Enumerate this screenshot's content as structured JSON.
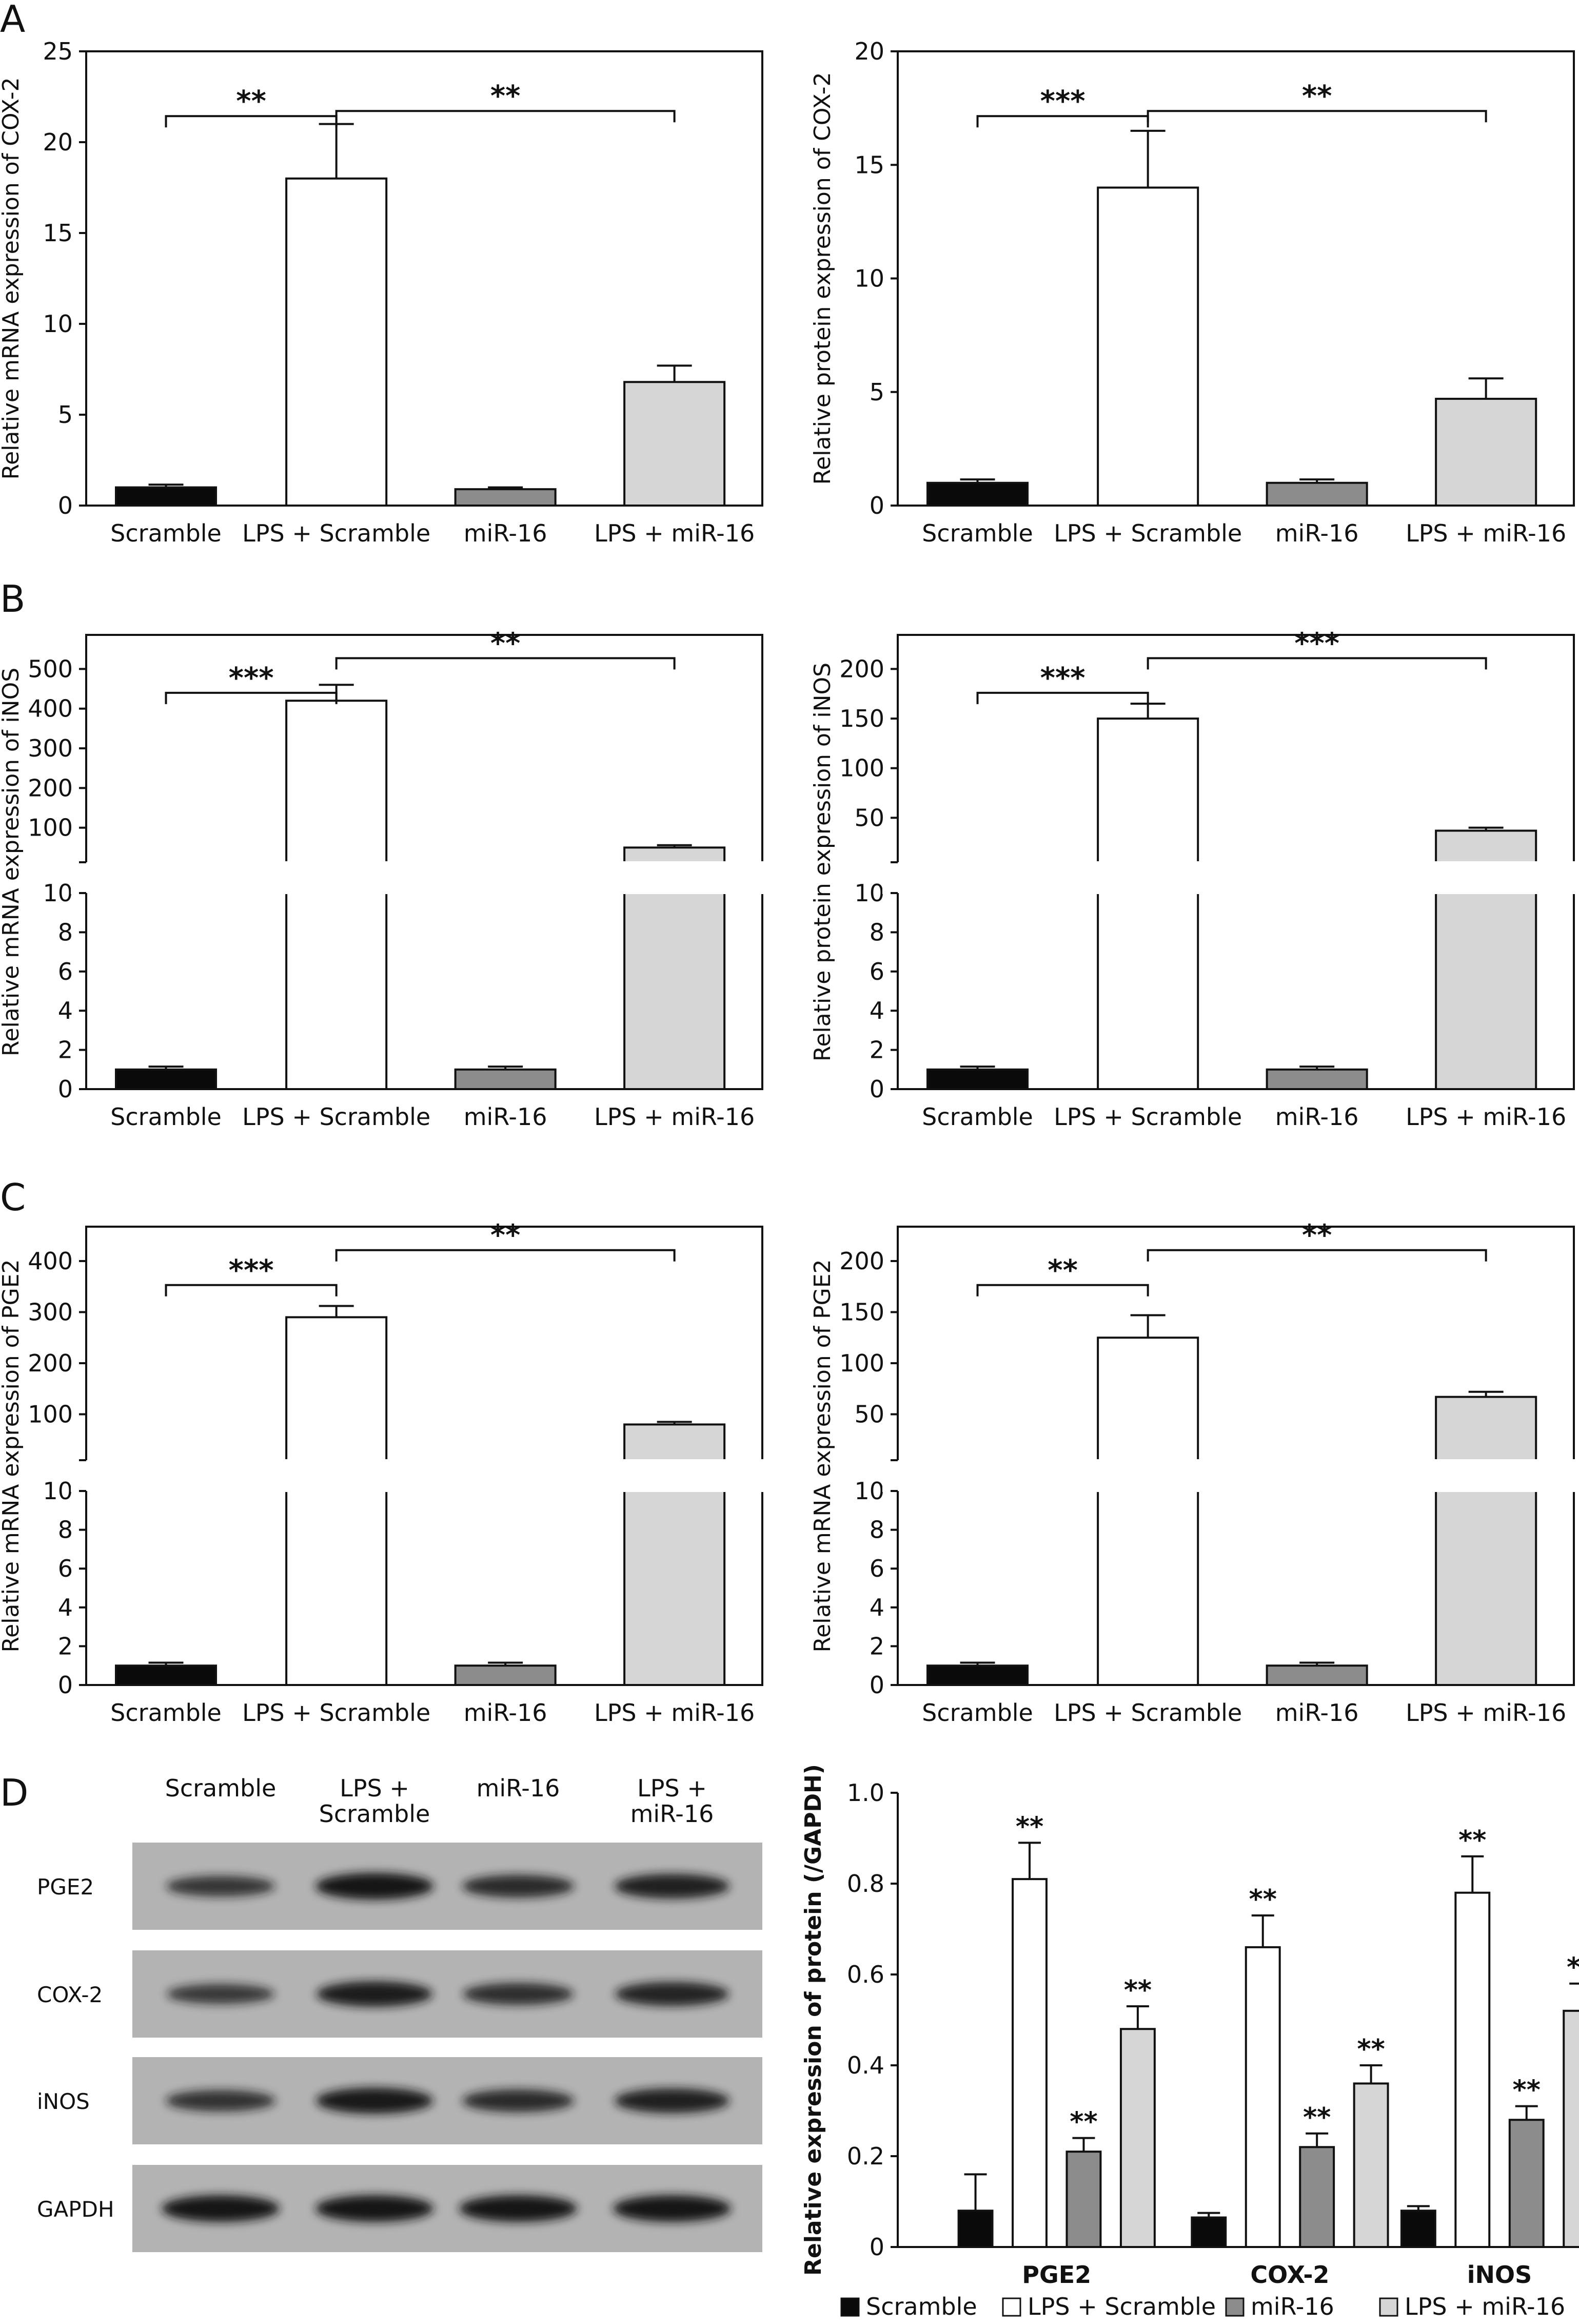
{
  "panel_labels": [
    "A",
    "B",
    "C",
    "D"
  ],
  "colors": {
    "Scramble": "#0a0a0a",
    "LPS + Scramble": "#ffffff",
    "miR-16": "#8c8c8c",
    "LPS + miR-16": "#d6d6d6",
    "axis": "#111111",
    "blot_bg": "#b3b3b3",
    "band": "#141414"
  },
  "chart_data": [
    {
      "id": "A-left",
      "panel": "A",
      "type": "bar",
      "ylabel": "Relative mRNA expression of COX-2",
      "categories": [
        "Scramble",
        "LPS + Scramble",
        "miR-16",
        "LPS + miR-16"
      ],
      "values": [
        1.0,
        18.0,
        0.9,
        6.8
      ],
      "errors": [
        0.15,
        3.0,
        0.1,
        0.9
      ],
      "ylim": [
        0,
        25
      ],
      "yticks": [
        "0",
        "5",
        "10",
        "15",
        "20",
        "25"
      ],
      "annotations": [
        {
          "from": "Scramble",
          "to": "LPS + Scramble",
          "text": "**"
        },
        {
          "from": "LPS + Scramble",
          "to": "LPS + miR-16",
          "text": "**"
        }
      ]
    },
    {
      "id": "A-right",
      "panel": "A",
      "type": "bar",
      "ylabel": "Relative protein expression of COX-2",
      "categories": [
        "Scramble",
        "LPS + Scramble",
        "miR-16",
        "LPS + miR-16"
      ],
      "values": [
        1.0,
        14.0,
        1.0,
        4.7
      ],
      "errors": [
        0.15,
        2.5,
        0.15,
        0.9
      ],
      "ylim": [
        0,
        20
      ],
      "yticks": [
        "0",
        "5",
        "10",
        "15",
        "20"
      ],
      "annotations": [
        {
          "from": "Scramble",
          "to": "LPS + Scramble",
          "text": "***"
        },
        {
          "from": "LPS + Scramble",
          "to": "LPS + miR-16",
          "text": "**"
        }
      ]
    },
    {
      "id": "B-left",
      "panel": "B",
      "type": "bar",
      "broken_axis": true,
      "ylabel": "Relative mRNA expression of iNOS",
      "categories": [
        "Scramble",
        "LPS + Scramble",
        "miR-16",
        "LPS + miR-16"
      ],
      "values": [
        1.0,
        420,
        1.0,
        50
      ],
      "errors": [
        0.15,
        40,
        0.15,
        6
      ],
      "ylim": [
        0,
        500
      ],
      "yticks_lower": [
        "0",
        "2",
        "4",
        "6",
        "8",
        "10"
      ],
      "yticks_upper": [
        "100",
        "200",
        "300",
        "400",
        "500"
      ],
      "annotations": [
        {
          "from": "Scramble",
          "to": "LPS + Scramble",
          "text": "***"
        },
        {
          "from": "LPS + Scramble",
          "to": "LPS + miR-16",
          "text": "**"
        }
      ]
    },
    {
      "id": "B-right",
      "panel": "B",
      "type": "bar",
      "broken_axis": true,
      "ylabel": "Relative protein expression of iNOS",
      "categories": [
        "Scramble",
        "LPS + Scramble",
        "miR-16",
        "LPS + miR-16"
      ],
      "values": [
        1.0,
        150,
        1.0,
        37
      ],
      "errors": [
        0.15,
        15,
        0.15,
        3
      ],
      "ylim": [
        0,
        200
      ],
      "yticks_lower": [
        "0",
        "2",
        "4",
        "6",
        "8",
        "10"
      ],
      "yticks_upper": [
        "50",
        "100",
        "150",
        "200"
      ],
      "annotations": [
        {
          "from": "Scramble",
          "to": "LPS + Scramble",
          "text": "***"
        },
        {
          "from": "LPS + Scramble",
          "to": "LPS + miR-16",
          "text": "***"
        }
      ]
    },
    {
      "id": "C-left",
      "panel": "C",
      "type": "bar",
      "broken_axis": true,
      "ylabel": "Relative mRNA expression of PGE2",
      "categories": [
        "Scramble",
        "LPS + Scramble",
        "miR-16",
        "LPS + miR-16"
      ],
      "values": [
        1.0,
        290,
        1.0,
        80
      ],
      "errors": [
        0.15,
        22,
        0.15,
        5
      ],
      "ylim": [
        0,
        400
      ],
      "yticks_lower": [
        "0",
        "2",
        "4",
        "6",
        "8",
        "10"
      ],
      "yticks_upper": [
        "100",
        "200",
        "300",
        "400"
      ],
      "annotations": [
        {
          "from": "Scramble",
          "to": "LPS + Scramble",
          "text": "***"
        },
        {
          "from": "LPS + Scramble",
          "to": "LPS + miR-16",
          "text": "**"
        }
      ]
    },
    {
      "id": "C-right",
      "panel": "C",
      "type": "bar",
      "broken_axis": true,
      "ylabel": "Relative mRNA expression of PGE2",
      "categories": [
        "Scramble",
        "LPS + Scramble",
        "miR-16",
        "LPS + miR-16"
      ],
      "values": [
        1.0,
        125,
        1.0,
        67
      ],
      "errors": [
        0.15,
        22,
        0.15,
        5
      ],
      "ylim": [
        0,
        200
      ],
      "yticks_lower": [
        "0",
        "2",
        "4",
        "6",
        "8",
        "10"
      ],
      "yticks_upper": [
        "50",
        "100",
        "150",
        "200"
      ],
      "annotations": [
        {
          "from": "Scramble",
          "to": "LPS + Scramble",
          "text": "**"
        },
        {
          "from": "LPS + Scramble",
          "to": "LPS + miR-16",
          "text": "**"
        }
      ]
    },
    {
      "id": "D-right",
      "panel": "D",
      "type": "bar",
      "ylabel": "Relative expression of protein (/GAPDH)",
      "categories": [
        "PGE2",
        "COX-2",
        "iNOS"
      ],
      "series": [
        {
          "name": "Scramble",
          "values": [
            0.08,
            0.065,
            0.08
          ],
          "errors": [
            0.08,
            0.01,
            0.01
          ],
          "marks": [
            "",
            "",
            ""
          ]
        },
        {
          "name": "LPS + Scramble",
          "values": [
            0.81,
            0.66,
            0.78
          ],
          "errors": [
            0.08,
            0.07,
            0.08
          ],
          "marks": [
            "**",
            "**",
            "**"
          ]
        },
        {
          "name": "miR-16",
          "values": [
            0.21,
            0.22,
            0.28
          ],
          "errors": [
            0.03,
            0.03,
            0.03
          ],
          "marks": [
            "**",
            "**",
            "**"
          ]
        },
        {
          "name": "LPS + miR-16",
          "values": [
            0.48,
            0.36,
            0.52
          ],
          "errors": [
            0.05,
            0.04,
            0.06
          ],
          "marks": [
            "**",
            "**",
            "**"
          ]
        }
      ],
      "ylim": [
        0,
        1.0
      ],
      "yticks": [
        "0",
        "0.2",
        "0.4",
        "0.6",
        "0.8",
        "1.0"
      ],
      "legend_position": "bottom"
    }
  ],
  "western_blot": {
    "columns": [
      "Scramble",
      "LPS +\nScramble",
      "miR-16",
      "LPS +\nmiR-16"
    ],
    "rows": [
      "PGE2",
      "COX-2",
      "iNOS",
      "GAPDH"
    ],
    "band_intensity": [
      [
        0.55,
        1.0,
        0.7,
        0.85
      ],
      [
        0.5,
        0.9,
        0.65,
        0.8
      ],
      [
        0.6,
        0.95,
        0.7,
        0.85
      ],
      [
        1.0,
        1.0,
        1.0,
        1.0
      ]
    ]
  }
}
